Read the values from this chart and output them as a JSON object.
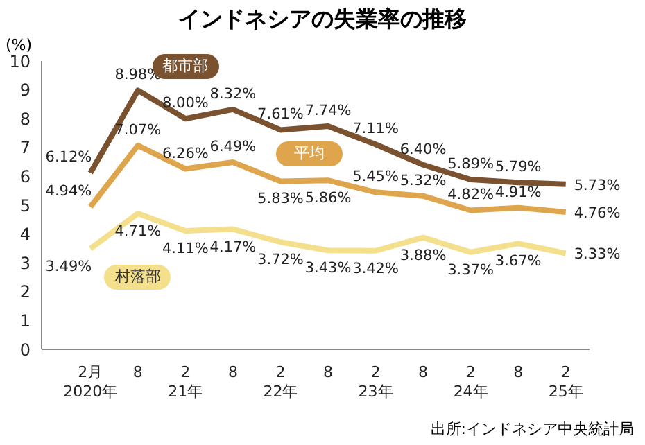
{
  "chart_data": {
    "type": "line",
    "title": "インドネシアの失業率の推移",
    "ylabel": "(%)",
    "categories": [
      "2月\n2020年",
      "8",
      "2\n21年",
      "8",
      "2\n22年",
      "8",
      "2\n23年",
      "8",
      "2\n24年",
      "8",
      "2\n25年"
    ],
    "series": [
      {
        "name": "都市部",
        "color": "#7a5230",
        "values": [
          6.12,
          8.98,
          8.0,
          8.32,
          7.61,
          7.74,
          7.11,
          6.4,
          5.89,
          5.79,
          5.73
        ],
        "value_labels": [
          "6.12%",
          "8.98%",
          "8.00%",
          "8.32%",
          "7.61%",
          "7.74%",
          "7.11%",
          "6.40%",
          "5.89%",
          "5.79%",
          "5.73%"
        ]
      },
      {
        "name": "平均",
        "color": "#dea54c",
        "values": [
          4.94,
          7.07,
          6.26,
          6.49,
          5.83,
          5.86,
          5.45,
          5.32,
          4.82,
          4.91,
          4.76
        ],
        "value_labels": [
          "4.94%",
          "7.07%",
          "6.26%",
          "6.49%",
          "5.83%",
          "5.86%",
          "5.45%",
          "5.32%",
          "4.82%",
          "4.91%",
          "4.76%"
        ]
      },
      {
        "name": "村落部",
        "color": "#f3df8c",
        "values": [
          3.49,
          4.71,
          4.11,
          4.17,
          3.72,
          3.43,
          3.42,
          3.88,
          3.37,
          3.67,
          3.33
        ],
        "value_labels": [
          "3.49%",
          "4.71%",
          "4.11%",
          "4.17%",
          "3.72%",
          "3.43%",
          "3.42%",
          "3.88%",
          "3.37%",
          "3.67%",
          "3.33%"
        ]
      }
    ],
    "ylim": [
      0,
      10
    ],
    "yticks": [
      0,
      1,
      2,
      3,
      4,
      5,
      6,
      7,
      8,
      9,
      10
    ],
    "grid": false,
    "marker": "none",
    "line_style": "solid",
    "annotations": [
      "出所:インドネシア中央統計局"
    ]
  }
}
